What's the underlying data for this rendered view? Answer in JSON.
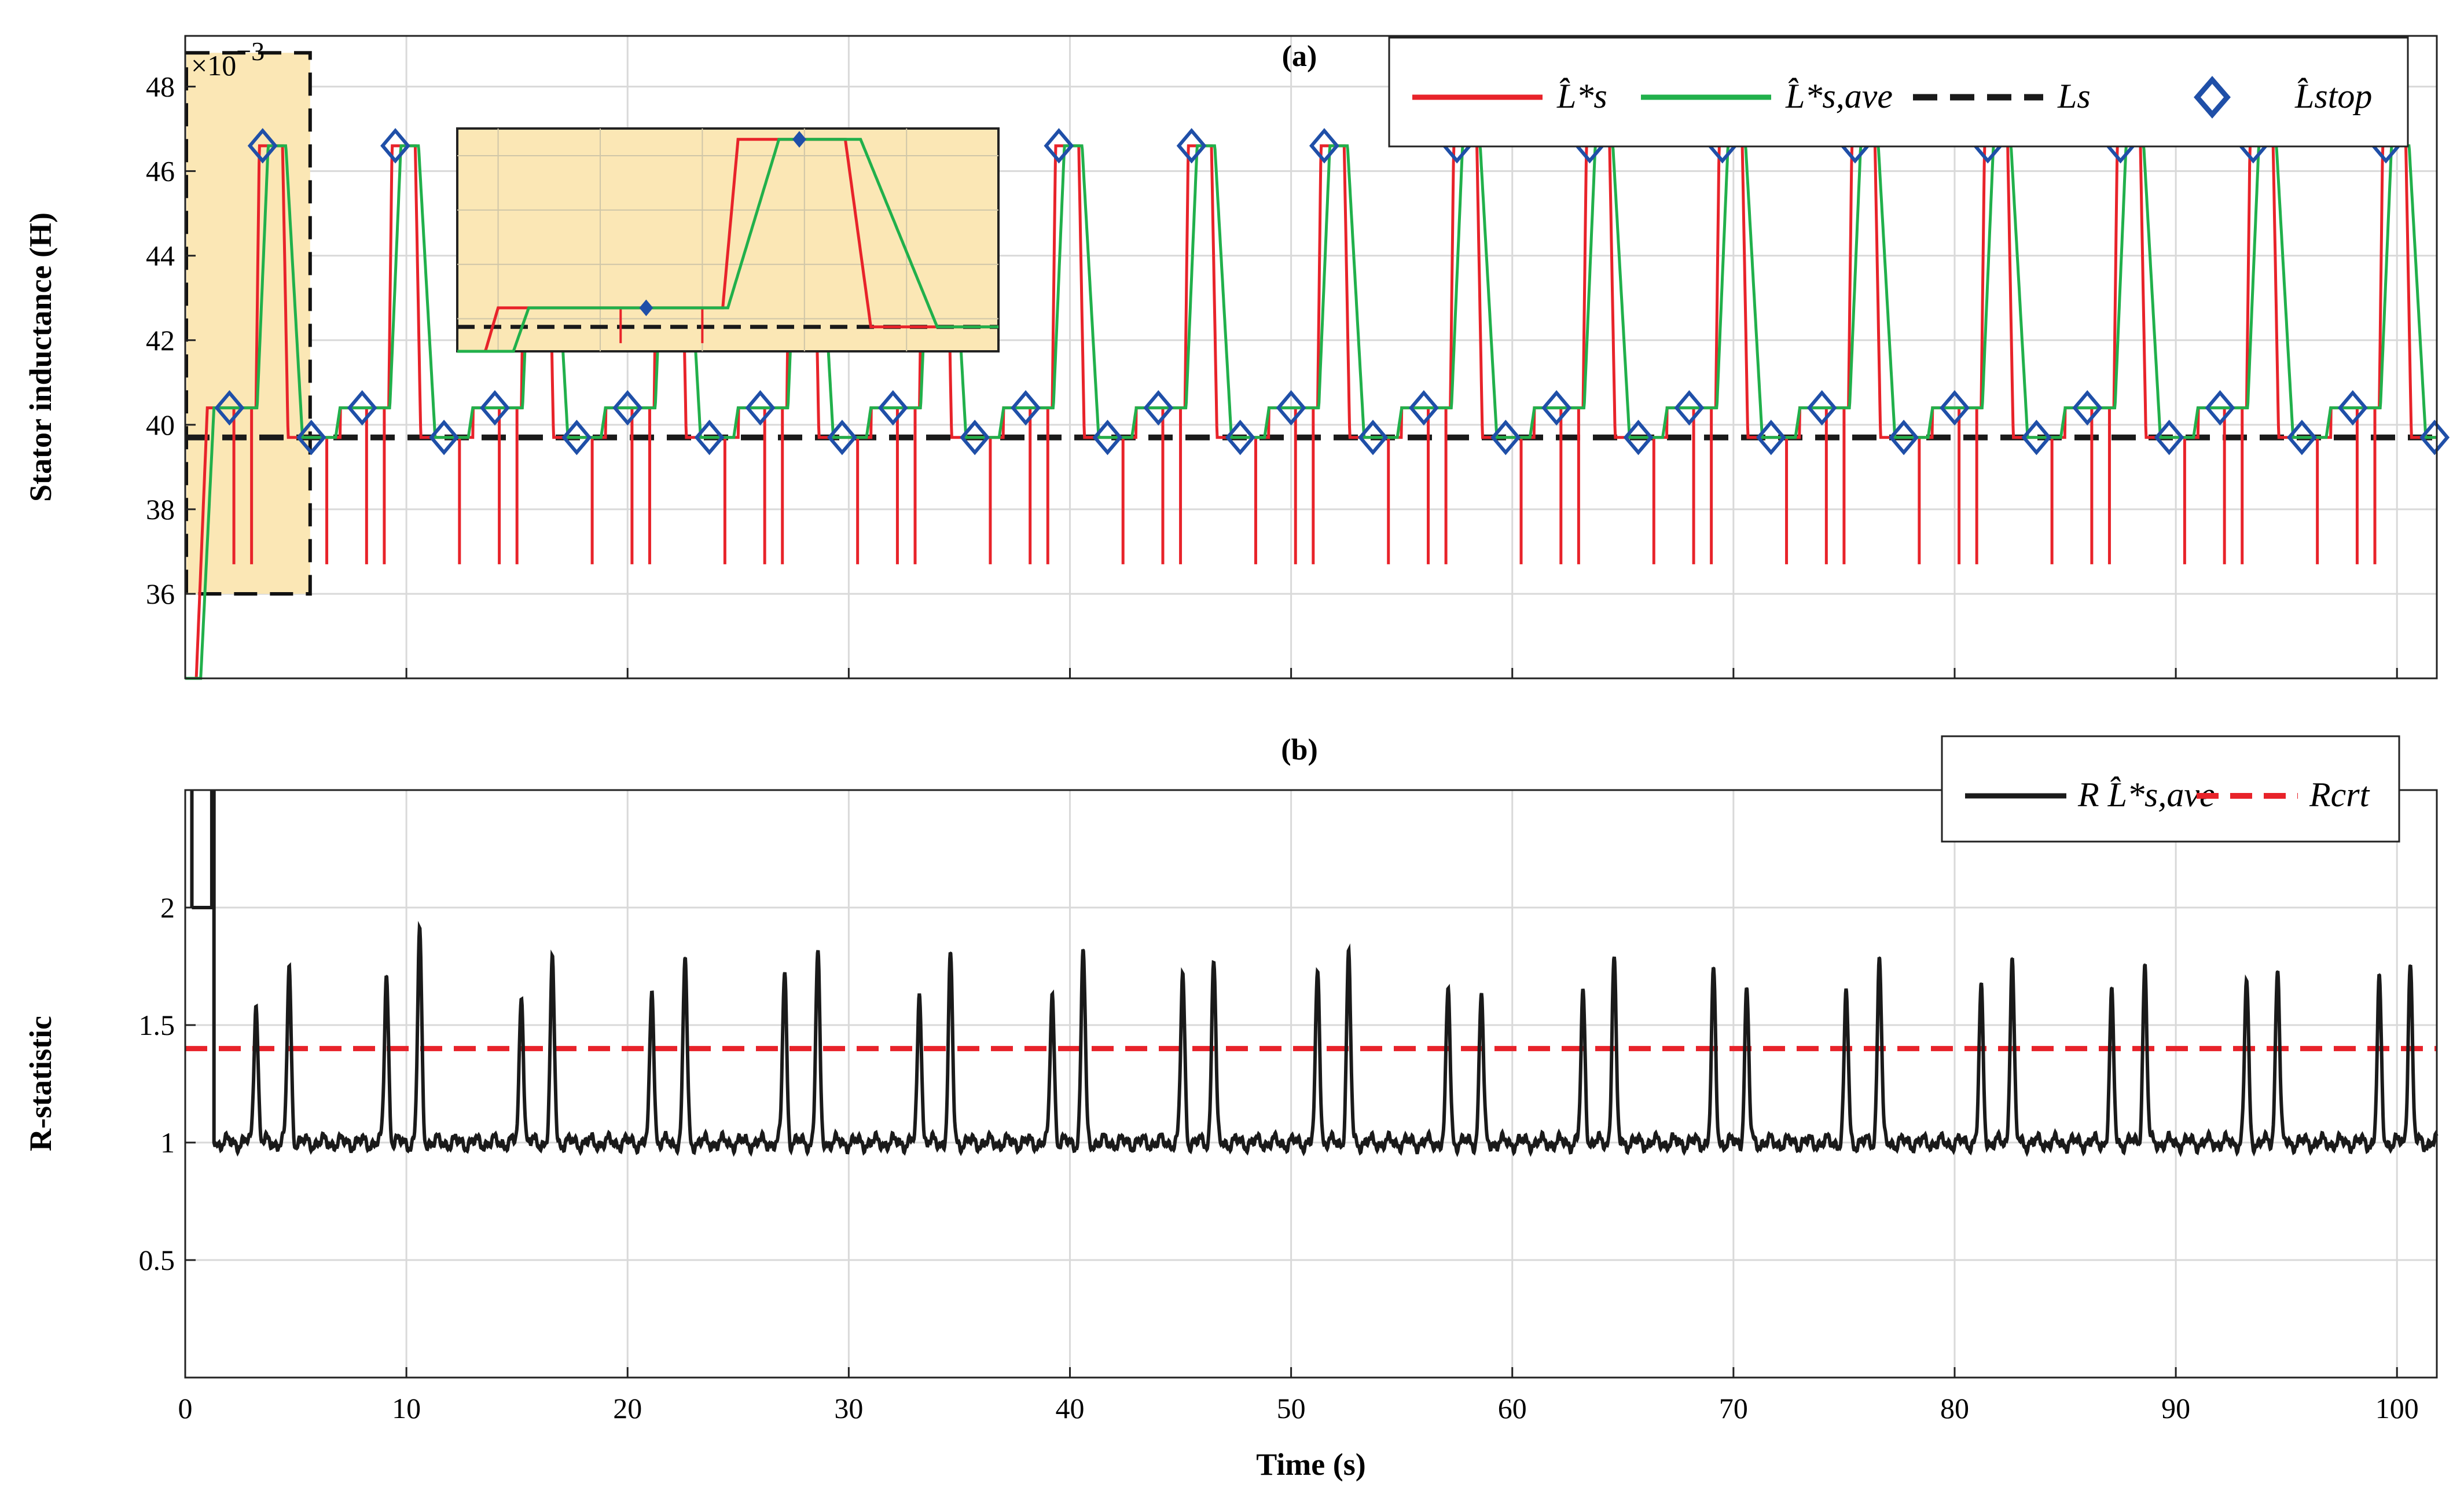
{
  "chart_data": [
    {
      "panel": "(a)",
      "type": "line",
      "ylabel": "Stator inductance (H)",
      "y_multiplier": "×10",
      "y_exponent": "−3",
      "xlim": [
        0,
        101.8
      ],
      "ylim": [
        34,
        49.2
      ],
      "xticks": [
        0,
        10,
        20,
        30,
        40,
        50,
        60,
        70,
        80,
        90,
        100
      ],
      "yticks": [
        36,
        38,
        40,
        42,
        44,
        46,
        48
      ],
      "grid": true,
      "legend_position": "top-right",
      "colors": {
        "L_hat": "#e8232a",
        "L_ave": "#21b04b",
        "Ls": "#1a1a1a",
        "Lstop": "#1f4fa8",
        "highlight": "#fbe7b5"
      },
      "series": [
        {
          "name": "L̂*s",
          "style": "solid red",
          "description_values": {
            "cycle_period_s": 6,
            "first_cycle_start_s": 1.0,
            "high_level": 46.6,
            "mid_level": 40.4,
            "low_level": 39.7,
            "dip_level": 36.7,
            "initial_transient_min": 34.0
          }
        },
        {
          "name": "L̂*s,ave",
          "style": "solid green",
          "description_values": {
            "high_level": 46.6,
            "mid_level": 40.4,
            "low_level": 39.7
          }
        },
        {
          "name": "Ls",
          "style": "dashed black",
          "y": 39.7
        },
        {
          "name": "L̂stop",
          "style": "blue diamond markers",
          "points": [
            [
              2.0,
              40.4
            ],
            [
              3.5,
              46.6
            ],
            [
              5.7,
              39.7
            ],
            [
              8.0,
              40.4
            ],
            [
              9.5,
              46.6
            ],
            [
              11.7,
              39.7
            ],
            [
              14.0,
              40.4
            ],
            [
              15.5,
              46.6
            ],
            [
              17.7,
              39.7
            ],
            [
              20.0,
              40.4
            ],
            [
              21.5,
              46.6
            ],
            [
              23.7,
              39.7
            ],
            [
              26.0,
              40.4
            ],
            [
              27.5,
              46.6
            ],
            [
              29.7,
              39.7
            ],
            [
              32.0,
              40.4
            ],
            [
              33.5,
              46.6
            ],
            [
              35.7,
              39.7
            ],
            [
              38.0,
              40.4
            ],
            [
              39.5,
              46.6
            ],
            [
              41.7,
              39.7
            ],
            [
              44.0,
              40.4
            ],
            [
              45.5,
              46.6
            ],
            [
              47.7,
              39.7
            ],
            [
              50.0,
              40.4
            ],
            [
              51.5,
              46.6
            ],
            [
              53.7,
              39.7
            ],
            [
              56.0,
              40.4
            ],
            [
              57.5,
              46.6
            ],
            [
              59.7,
              39.7
            ],
            [
              62.0,
              40.4
            ],
            [
              63.5,
              46.6
            ],
            [
              65.7,
              39.7
            ],
            [
              68.0,
              40.4
            ],
            [
              69.5,
              46.6
            ],
            [
              71.7,
              39.7
            ],
            [
              74.0,
              40.4
            ],
            [
              75.5,
              46.6
            ],
            [
              77.7,
              39.7
            ],
            [
              80.0,
              40.4
            ],
            [
              81.5,
              46.6
            ],
            [
              83.7,
              39.7
            ],
            [
              86.0,
              40.4
            ],
            [
              87.5,
              46.6
            ],
            [
              89.7,
              39.7
            ],
            [
              92.0,
              40.4
            ],
            [
              93.5,
              46.6
            ],
            [
              95.7,
              39.7
            ],
            [
              98.0,
              40.4
            ],
            [
              99.5,
              46.6
            ],
            [
              101.7,
              39.7
            ]
          ]
        }
      ],
      "zoom_region": {
        "x": [
          0,
          5.7
        ],
        "y": [
          36,
          48.8
        ]
      },
      "legend": [
        "L̂*s",
        "L̂*s,ave",
        "Ls",
        "L̂stop"
      ]
    },
    {
      "panel": "(b)",
      "type": "line",
      "xlabel": "Time (s)",
      "ylabel": "R-statistic",
      "xlim": [
        0,
        101.8
      ],
      "ylim": [
        0,
        2.5
      ],
      "xticks": [
        0,
        10,
        20,
        30,
        40,
        50,
        60,
        70,
        80,
        90,
        100
      ],
      "yticks": [
        0.5,
        1,
        1.5,
        2
      ],
      "grid": true,
      "legend_position": "top-right",
      "colors": {
        "R": "#1a1a1a",
        "Rcrt": "#e8232a"
      },
      "series": [
        {
          "name": "R L̂*s,ave",
          "style": "solid black",
          "baseline": 1.0,
          "peaks": [
            [
              3.2,
              1.6
            ],
            [
              4.7,
              1.74
            ],
            [
              9.1,
              1.72
            ],
            [
              10.6,
              1.89
            ],
            [
              15.2,
              1.64
            ],
            [
              16.6,
              1.76
            ],
            [
              21.1,
              1.65
            ],
            [
              22.6,
              1.78
            ],
            [
              27.1,
              1.73
            ],
            [
              28.6,
              1.8
            ],
            [
              33.2,
              1.64
            ],
            [
              34.6,
              1.79
            ],
            [
              39.2,
              1.64
            ],
            [
              40.6,
              1.82
            ],
            [
              45.1,
              1.71
            ],
            [
              46.5,
              1.79
            ],
            [
              51.2,
              1.74
            ],
            [
              52.6,
              1.79
            ],
            [
              57.1,
              1.65
            ],
            [
              58.6,
              1.64
            ],
            [
              63.2,
              1.63
            ],
            [
              64.6,
              1.79
            ],
            [
              69.1,
              1.72
            ],
            [
              70.6,
              1.65
            ],
            [
              75.1,
              1.64
            ],
            [
              76.6,
              1.8
            ],
            [
              81.2,
              1.65
            ],
            [
              82.6,
              1.78
            ],
            [
              87.1,
              1.62
            ],
            [
              88.6,
              1.75
            ],
            [
              93.2,
              1.69
            ],
            [
              94.6,
              1.76
            ],
            [
              99.2,
              1.68
            ],
            [
              100.6,
              1.78
            ]
          ],
          "startup": {
            "x": [
              0.3,
              1.3
            ],
            "y_clipped_above": 2.5
          }
        },
        {
          "name": "Rcrt",
          "style": "dashed red",
          "y": 1.4
        }
      ],
      "legend": [
        "R L̂*s,ave",
        "Rcrt"
      ]
    }
  ]
}
